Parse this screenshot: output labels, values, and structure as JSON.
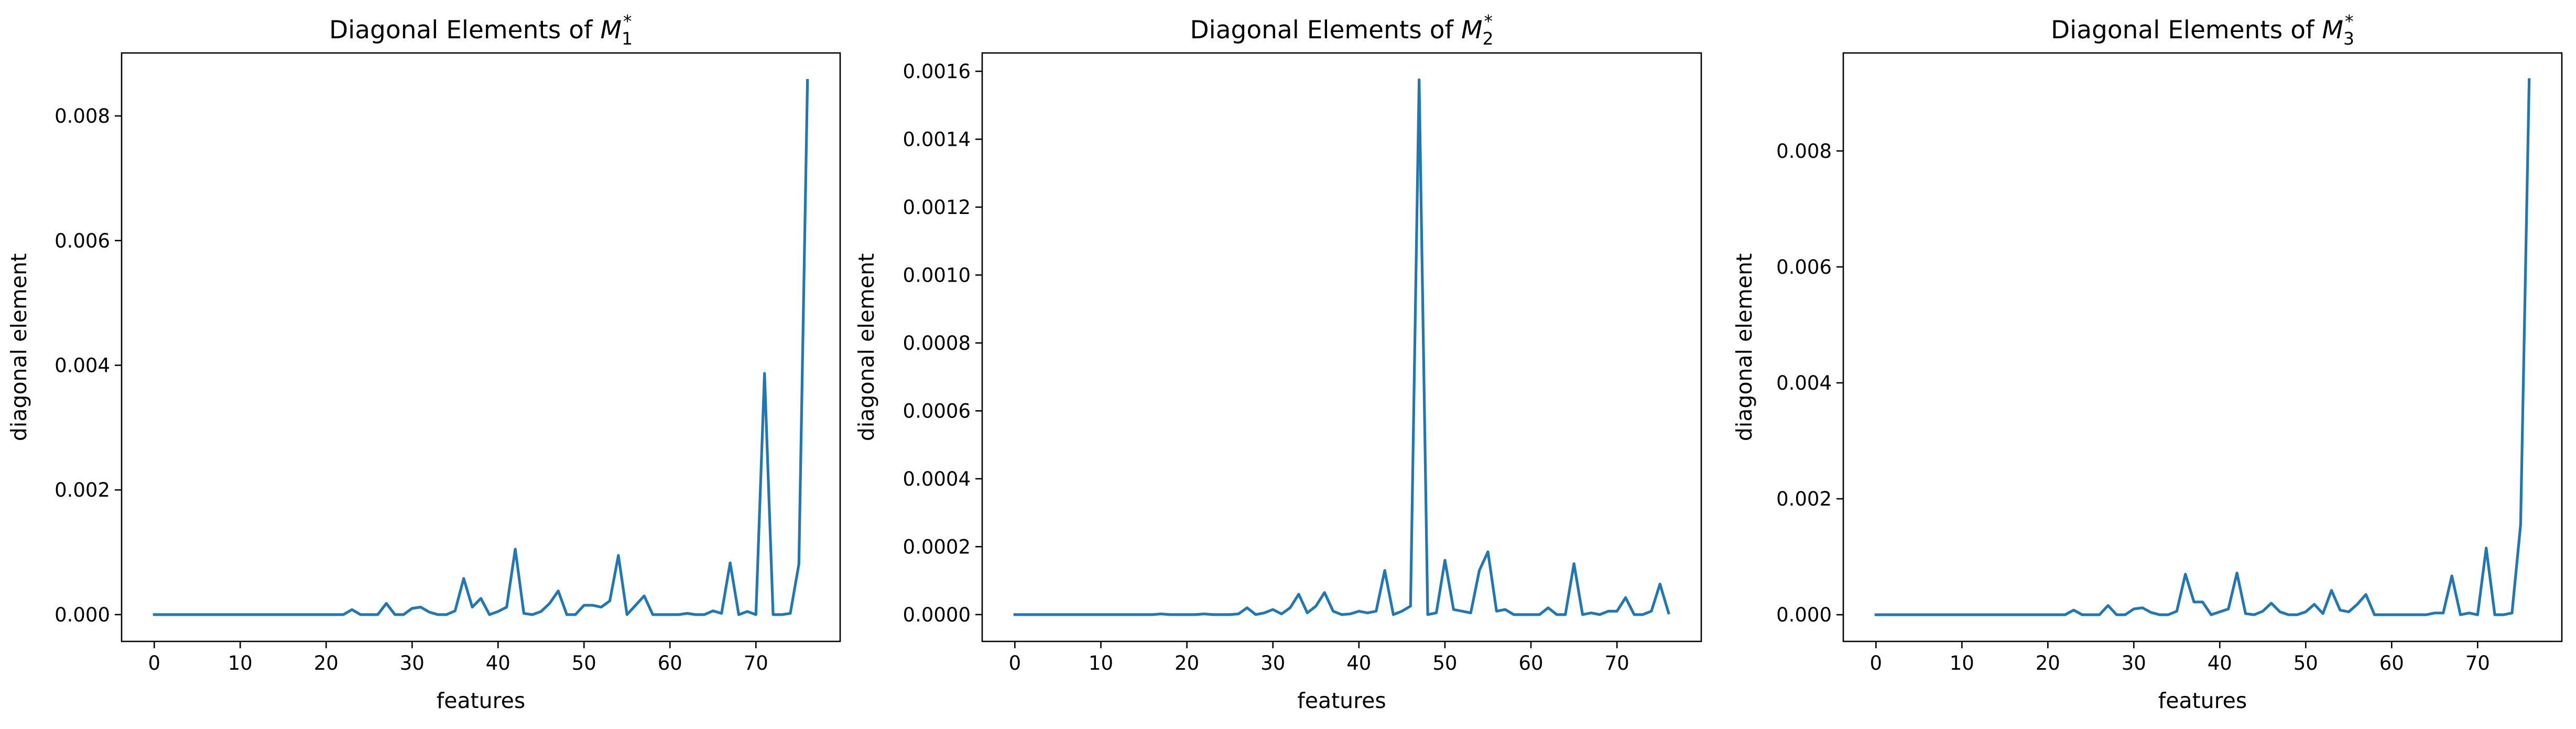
{
  "figure": {
    "panels": [
      "Diagonal Elements of M1*",
      "Diagonal Elements of M2*",
      "Diagonal Elements of M3*"
    ]
  },
  "colors": {
    "series": "#1f77b4"
  },
  "chart_data": [
    {
      "type": "line",
      "title": "Diagonal Elements of M1*",
      "title_prefix": "Diagonal Elements of ",
      "title_symbol": "M",
      "title_subscript": "1",
      "title_superscript": "*",
      "xlabel": "features",
      "ylabel": "diagonal element",
      "xlim": [
        -3.8,
        79.8
      ],
      "ylim": [
        -0.00043,
        0.00901
      ],
      "xticks": [
        0,
        10,
        20,
        30,
        40,
        50,
        60,
        70
      ],
      "xtick_labels": [
        "0",
        "10",
        "20",
        "30",
        "40",
        "50",
        "60",
        "70"
      ],
      "yticks": [
        0,
        0.002,
        0.004,
        0.006,
        0.008
      ],
      "ytick_labels": [
        "0.000",
        "0.002",
        "0.004",
        "0.006",
        "0.008"
      ],
      "grid": false,
      "x": [
        0,
        1,
        2,
        3,
        4,
        5,
        6,
        7,
        8,
        9,
        10,
        11,
        12,
        13,
        14,
        15,
        16,
        17,
        18,
        19,
        20,
        21,
        22,
        23,
        24,
        25,
        26,
        27,
        28,
        29,
        30,
        31,
        32,
        33,
        34,
        35,
        36,
        37,
        38,
        39,
        40,
        41,
        42,
        43,
        44,
        45,
        46,
        47,
        48,
        49,
        50,
        51,
        52,
        53,
        54,
        55,
        56,
        57,
        58,
        59,
        60,
        61,
        62,
        63,
        64,
        65,
        66,
        67,
        68,
        69,
        70,
        71,
        72,
        73,
        74,
        75,
        76
      ],
      "series": [
        {
          "values": [
            0,
            0,
            0,
            0,
            0,
            0,
            0,
            0,
            0,
            0,
            0,
            0,
            0,
            0,
            0,
            0,
            0,
            0,
            0,
            0,
            0,
            0,
            0,
            8e-05,
            0,
            0,
            0,
            0.00018,
            0,
            0,
            0.0001,
            0.00012,
            4e-05,
            0,
            0,
            6e-05,
            0.00058,
            0.00012,
            0.00026,
            0,
            5e-05,
            0.00012,
            0.00105,
            2e-05,
            0,
            5e-05,
            0.00018,
            0.00038,
            0,
            0,
            0.00015,
            0.00015,
            0.00012,
            0.00022,
            0.00095,
            0,
            0.00015,
            0.0003,
            0,
            0,
            0,
            0,
            2e-05,
            0,
            0,
            6e-05,
            2e-05,
            0.00083,
            0,
            5e-05,
            0,
            0.00387,
            0,
            0,
            2e-05,
            0.00081,
            0.00857
          ]
        }
      ]
    },
    {
      "type": "line",
      "title": "Diagonal Elements of M2*",
      "title_prefix": "Diagonal Elements of ",
      "title_symbol": "M",
      "title_subscript": "2",
      "title_superscript": "*",
      "xlabel": "features",
      "ylabel": "diagonal element",
      "xlim": [
        -3.8,
        79.8
      ],
      "ylim": [
        -7.9e-05,
        0.001654
      ],
      "xticks": [
        0,
        10,
        20,
        30,
        40,
        50,
        60,
        70
      ],
      "xtick_labels": [
        "0",
        "10",
        "20",
        "30",
        "40",
        "50",
        "60",
        "70"
      ],
      "yticks": [
        0,
        0.0002,
        0.0004,
        0.0006,
        0.0008,
        0.001,
        0.0012,
        0.0014,
        0.0016
      ],
      "ytick_labels": [
        "0.0000",
        "0.0002",
        "0.0004",
        "0.0006",
        "0.0008",
        "0.0010",
        "0.0012",
        "0.0014",
        "0.0016"
      ],
      "grid": false,
      "x": [
        0,
        1,
        2,
        3,
        4,
        5,
        6,
        7,
        8,
        9,
        10,
        11,
        12,
        13,
        14,
        15,
        16,
        17,
        18,
        19,
        20,
        21,
        22,
        23,
        24,
        25,
        26,
        27,
        28,
        29,
        30,
        31,
        32,
        33,
        34,
        35,
        36,
        37,
        38,
        39,
        40,
        41,
        42,
        43,
        44,
        45,
        46,
        47,
        48,
        49,
        50,
        51,
        52,
        53,
        54,
        55,
        56,
        57,
        58,
        59,
        60,
        61,
        62,
        63,
        64,
        65,
        66,
        67,
        68,
        69,
        70,
        71,
        72,
        73,
        74,
        75,
        76
      ],
      "series": [
        {
          "values": [
            0,
            0,
            0,
            0,
            0,
            0,
            0,
            0,
            0,
            0,
            0,
            0,
            0,
            0,
            0,
            0,
            0,
            2e-06,
            0,
            0,
            0,
            0,
            2e-06,
            0,
            0,
            0,
            2e-06,
            2e-05,
            0,
            5e-06,
            1.5e-05,
            2e-06,
            2e-05,
            6e-05,
            5e-06,
            2.5e-05,
            6.5e-05,
            1e-05,
            0,
            2e-06,
            1e-05,
            5e-06,
            1e-05,
            0.00013,
            0,
            1e-05,
            2.5e-05,
            0.001575,
            0,
            5e-06,
            0.00016,
            1.5e-05,
            1e-05,
            5e-06,
            0.00013,
            0.000185,
            1e-05,
            1.5e-05,
            0,
            0,
            0,
            0,
            2e-05,
            0,
            0,
            0.00015,
            0,
            5e-06,
            0,
            1e-05,
            1e-05,
            5e-05,
            0,
            0,
            1e-05,
            9e-05,
            5e-06
          ]
        }
      ]
    },
    {
      "type": "line",
      "title": "Diagonal Elements of M3*",
      "title_prefix": "Diagonal Elements of ",
      "title_symbol": "M",
      "title_subscript": "3",
      "title_superscript": "*",
      "xlabel": "features",
      "ylabel": "diagonal element",
      "xlim": [
        -3.8,
        79.8
      ],
      "ylim": [
        -0.00046,
        0.00969
      ],
      "xticks": [
        0,
        10,
        20,
        30,
        40,
        50,
        60,
        70
      ],
      "xtick_labels": [
        "0",
        "10",
        "20",
        "30",
        "40",
        "50",
        "60",
        "70"
      ],
      "yticks": [
        0,
        0.002,
        0.004,
        0.006,
        0.008
      ],
      "ytick_labels": [
        "0.000",
        "0.002",
        "0.004",
        "0.006",
        "0.008"
      ],
      "grid": false,
      "x": [
        0,
        1,
        2,
        3,
        4,
        5,
        6,
        7,
        8,
        9,
        10,
        11,
        12,
        13,
        14,
        15,
        16,
        17,
        18,
        19,
        20,
        21,
        22,
        23,
        24,
        25,
        26,
        27,
        28,
        29,
        30,
        31,
        32,
        33,
        34,
        35,
        36,
        37,
        38,
        39,
        40,
        41,
        42,
        43,
        44,
        45,
        46,
        47,
        48,
        49,
        50,
        51,
        52,
        53,
        54,
        55,
        56,
        57,
        58,
        59,
        60,
        61,
        62,
        63,
        64,
        65,
        66,
        67,
        68,
        69,
        70,
        71,
        72,
        73,
        74,
        75,
        76
      ],
      "series": [
        {
          "values": [
            0,
            0,
            0,
            0,
            0,
            0,
            0,
            0,
            0,
            0,
            0,
            0,
            0,
            0,
            0,
            0,
            0,
            0,
            0,
            0,
            0,
            0,
            0,
            8e-05,
            0,
            0,
            0,
            0.00016,
            0,
            0,
            0.0001,
            0.00012,
            4e-05,
            0,
            0,
            6e-05,
            0.0007,
            0.00022,
            0.00022,
            0,
            5e-05,
            0.0001,
            0.00072,
            2e-05,
            0,
            6e-05,
            0.0002,
            5e-05,
            0,
            0,
            5e-05,
            0.00018,
            2e-05,
            0.00042,
            8e-05,
            5e-05,
            0.00018,
            0.00035,
            0,
            0,
            0,
            0,
            0,
            0,
            0,
            3e-05,
            3e-05,
            0.00067,
            0,
            3e-05,
            0,
            0.00115,
            0,
            0,
            3e-05,
            0.00155,
            0.00923
          ]
        }
      ]
    }
  ]
}
